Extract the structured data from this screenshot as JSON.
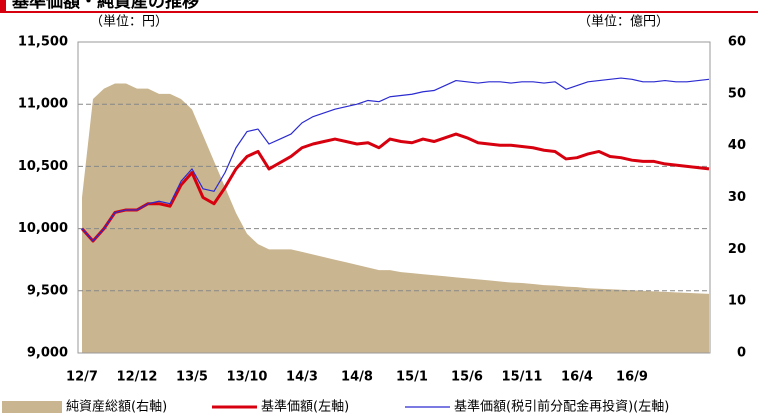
{
  "chart_data": {
    "type": "line",
    "title": "基準価額・純資産の推移",
    "y_unit_label": "（単位：円）",
    "y2_unit_label": "（単位：億円）",
    "categories": [
      "12/7",
      null,
      null,
      null,
      null,
      "12/12",
      null,
      null,
      null,
      null,
      "13/5",
      null,
      null,
      null,
      null,
      "13/10",
      null,
      null,
      null,
      null,
      "14/3",
      null,
      null,
      null,
      null,
      "14/8",
      null,
      null,
      null,
      null,
      "15/1",
      null,
      null,
      null,
      null,
      "15/6",
      null,
      null,
      null,
      null,
      "15/11",
      null,
      null,
      null,
      null,
      "16/4",
      null,
      null,
      null,
      null,
      "16/9",
      null,
      null,
      null,
      null,
      null,
      null,
      null
    ],
    "ylim": [
      9000,
      11500
    ],
    "yticks": [
      {
        "value": 9000,
        "label": "9,000"
      },
      {
        "value": 9500,
        "label": "9,500"
      },
      {
        "value": 10000,
        "label": "10,000"
      },
      {
        "value": 10500,
        "label": "10,500"
      },
      {
        "value": 11000,
        "label": "11,000"
      },
      {
        "value": 11500,
        "label": "11,500"
      }
    ],
    "y2lim": [
      0,
      60
    ],
    "y2ticks": [
      0,
      10,
      20,
      30,
      40,
      50,
      60
    ],
    "grid": true,
    "legend": "bottom",
    "series": [
      {
        "name": "純資産総額(右軸)",
        "type": "area",
        "axis": "y2",
        "color": "#c9b58f",
        "values": [
          30,
          49,
          51,
          52,
          52,
          51,
          51,
          50,
          50,
          49,
          47,
          42,
          37,
          32,
          27,
          23,
          21,
          20,
          20,
          20,
          19.5,
          19,
          18.5,
          18,
          17.5,
          17,
          16.5,
          16,
          16,
          15.6,
          15.4,
          15.2,
          15,
          14.8,
          14.6,
          14.4,
          14.2,
          14,
          13.8,
          13.6,
          13.5,
          13.3,
          13.1,
          13,
          12.8,
          12.7,
          12.5,
          12.4,
          12.3,
          12.2,
          12.1,
          12,
          11.9,
          11.8,
          11.7,
          11.6,
          11.5,
          11.4
        ]
      },
      {
        "name": "基準価額(左軸)",
        "type": "line",
        "color": "#d7000f",
        "values": [
          10000,
          9900,
          10000,
          10130,
          10150,
          10150,
          10200,
          10200,
          10180,
          10350,
          10450,
          10250,
          10200,
          10330,
          10480,
          10580,
          10620,
          10480,
          10530,
          10580,
          10650,
          10680,
          10700,
          10720,
          10700,
          10680,
          10690,
          10650,
          10720,
          10700,
          10690,
          10720,
          10700,
          10730,
          10760,
          10730,
          10690,
          10680,
          10670,
          10670,
          10660,
          10650,
          10630,
          10620,
          10560,
          10570,
          10600,
          10620,
          10580,
          10570,
          10550,
          10540,
          10540,
          10520,
          10510,
          10500,
          10490,
          10480
        ]
      },
      {
        "name": "基準価額(税引前分配金再投資)(左軸)",
        "type": "line",
        "color": "#2b2bd0",
        "values": [
          10000,
          9900,
          10000,
          10130,
          10150,
          10150,
          10200,
          10220,
          10200,
          10380,
          10480,
          10320,
          10300,
          10450,
          10650,
          10780,
          10800,
          10680,
          10720,
          10760,
          10850,
          10900,
          10930,
          10960,
          10980,
          11000,
          11030,
          11020,
          11060,
          11070,
          11080,
          11100,
          11110,
          11150,
          11190,
          11180,
          11170,
          11180,
          11180,
          11170,
          11180,
          11180,
          11170,
          11180,
          11120,
          11150,
          11180,
          11190,
          11200,
          11210,
          11200,
          11180,
          11180,
          11190,
          11180,
          11180,
          11190,
          11200
        ]
      }
    ]
  }
}
